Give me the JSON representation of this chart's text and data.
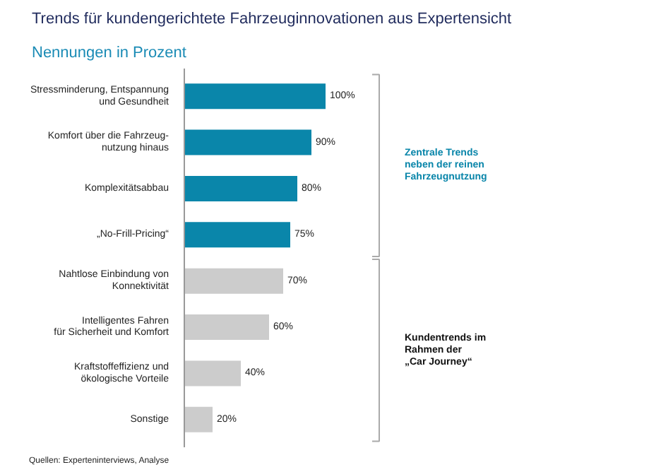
{
  "chart_data": {
    "type": "bar",
    "orientation": "horizontal",
    "title": "Trends für kundengerichtete Fahrzeuginnovationen aus Expertensicht",
    "subtitle": "Nennungen in Prozent",
    "categories": [
      "Stressminderung, Entspannung\nund Gesundheit",
      "Komfort über die Fahrzeug-\nnutzung hinaus",
      "Komplexitätsabbau",
      "„No-Frill-Pricing“",
      "Nahtlose Einbindung von\nKonnektivität",
      "Intelligentes Fahren\nfür Sicherheit und Komfort",
      "Kraftstoffeffizienz und\nökologische Vorteile",
      "Sonstige"
    ],
    "values": [
      100,
      90,
      80,
      75,
      70,
      60,
      40,
      20
    ],
    "value_labels": [
      "100%",
      "90%",
      "80%",
      "75%",
      "70%",
      "60%",
      "40%",
      "20%"
    ],
    "colors": [
      "#0a86aa",
      "#0a86aa",
      "#0a86aa",
      "#0a86aa",
      "#cccccc",
      "#cccccc",
      "#cccccc",
      "#cccccc"
    ],
    "annotations": [
      "Zentrale Trends\nneben der reinen\nFahrzeugnutzung",
      "Kundentrends im\nRahmen der\n„Car Journey“",
      "Quellen: Experteninterviews, Analyse"
    ]
  }
}
